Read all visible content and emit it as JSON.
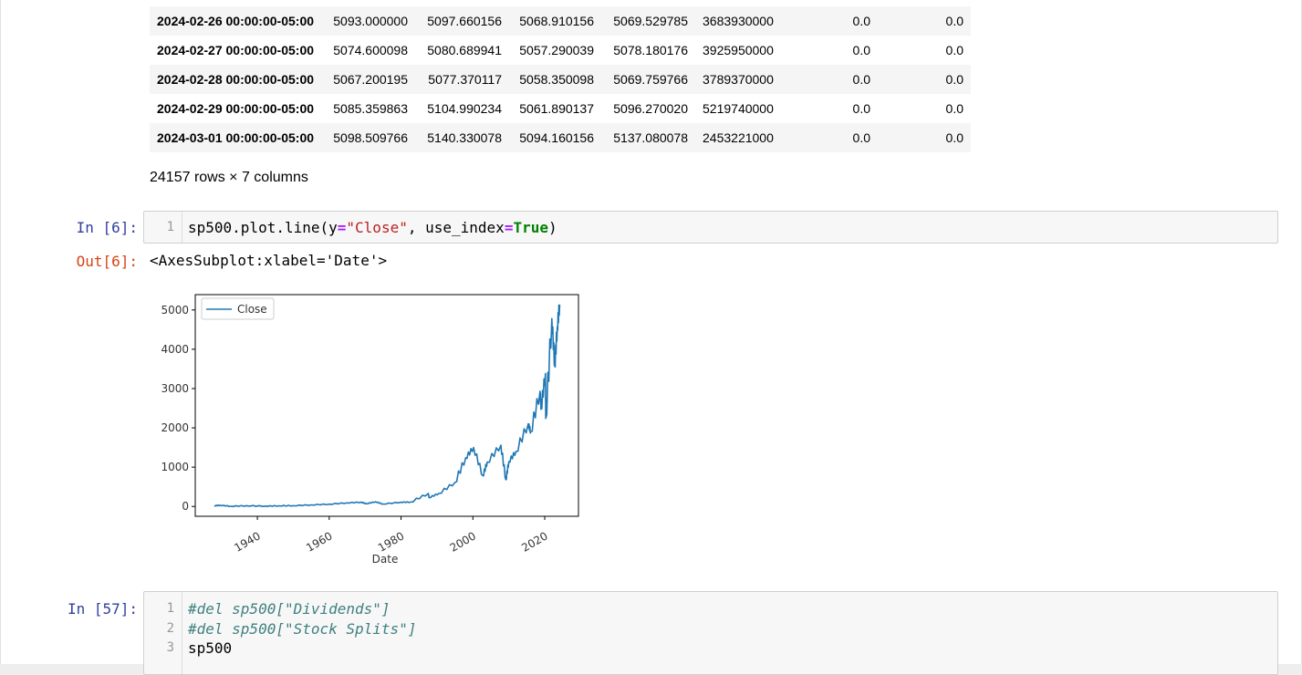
{
  "dataframe": {
    "rows": [
      {
        "index": "2024-02-26 00:00:00-05:00",
        "values": [
          "5093.000000",
          "5097.660156",
          "5068.910156",
          "5069.529785",
          "3683930000",
          "0.0",
          "0.0"
        ]
      },
      {
        "index": "2024-02-27 00:00:00-05:00",
        "values": [
          "5074.600098",
          "5080.689941",
          "5057.290039",
          "5078.180176",
          "3925950000",
          "0.0",
          "0.0"
        ]
      },
      {
        "index": "2024-02-28 00:00:00-05:00",
        "values": [
          "5067.200195",
          "5077.370117",
          "5058.350098",
          "5069.759766",
          "3789370000",
          "0.0",
          "0.0"
        ]
      },
      {
        "index": "2024-02-29 00:00:00-05:00",
        "values": [
          "5085.359863",
          "5104.990234",
          "5061.890137",
          "5096.270020",
          "5219740000",
          "0.0",
          "0.0"
        ]
      },
      {
        "index": "2024-03-01 00:00:00-05:00",
        "values": [
          "5098.509766",
          "5140.330078",
          "5094.160156",
          "5137.080078",
          "2453221000",
          "0.0",
          "0.0"
        ]
      }
    ],
    "shape": "24157 rows × 7 columns"
  },
  "cell6": {
    "in_prompt": "In [6]:",
    "out_prompt": "Out[6]:",
    "line_no": "1",
    "code_prefix": "sp500.plot.line(y",
    "code_eq1": "=",
    "code_str": "\"Close\"",
    "code_mid": ", use_index",
    "code_eq2": "=",
    "code_kw": "True",
    "code_suffix": ")",
    "output": "<AxesSubplot:xlabel='Date'>"
  },
  "cell57": {
    "in_prompt": "In [57]:",
    "lines": [
      {
        "no": "1",
        "text": "#del sp500[\"Dividends\"]"
      },
      {
        "no": "2",
        "text": "#del sp500[\"Stock Splits\"]"
      },
      {
        "no": "3",
        "text": "sp500"
      }
    ]
  },
  "colors": {
    "line": "#1f77b4",
    "in_prompt": "#303f9f",
    "out_prompt": "#d84315"
  },
  "chart_data": {
    "type": "line",
    "xlabel": "Date",
    "ylabel": "",
    "x_ticks": [
      "1940",
      "1960",
      "1980",
      "2000",
      "2020"
    ],
    "y_ticks": [
      0,
      1000,
      2000,
      3000,
      4000,
      5000
    ],
    "xlim": [
      1922.7,
      2029.4
    ],
    "ylim": [
      -250,
      5390
    ],
    "legend": "upper-left",
    "series": [
      {
        "name": "Close",
        "x": [
          1927.99,
          1929.7,
          1932.5,
          1937,
          1942.3,
          1946,
          1950,
          1955,
          1960,
          1965,
          1968.9,
          1970.4,
          1972.9,
          1974.9,
          1980,
          1982.6,
          1987.6,
          1987.8,
          1990.5,
          1995,
          1998,
          2000.2,
          2002.8,
          2004,
          2007.8,
          2009.2,
          2010,
          2012,
          2015.4,
          2016.1,
          2018.7,
          2019,
          2020.2,
          2020.3,
          2021.99,
          2022.8,
          2023.5,
          2024.17
        ],
        "y": [
          17.7,
          31,
          5,
          18,
          8.7,
          17,
          20,
          40,
          58,
          92,
          108,
          70,
          120,
          62,
          108,
          110,
          330,
          225,
          330,
          610,
          1240,
          1500,
          780,
          1130,
          1560,
          680,
          1140,
          1400,
          2100,
          1900,
          2930,
          2500,
          3380,
          2240,
          4780,
          3580,
          4570,
          5137
        ]
      }
    ]
  }
}
